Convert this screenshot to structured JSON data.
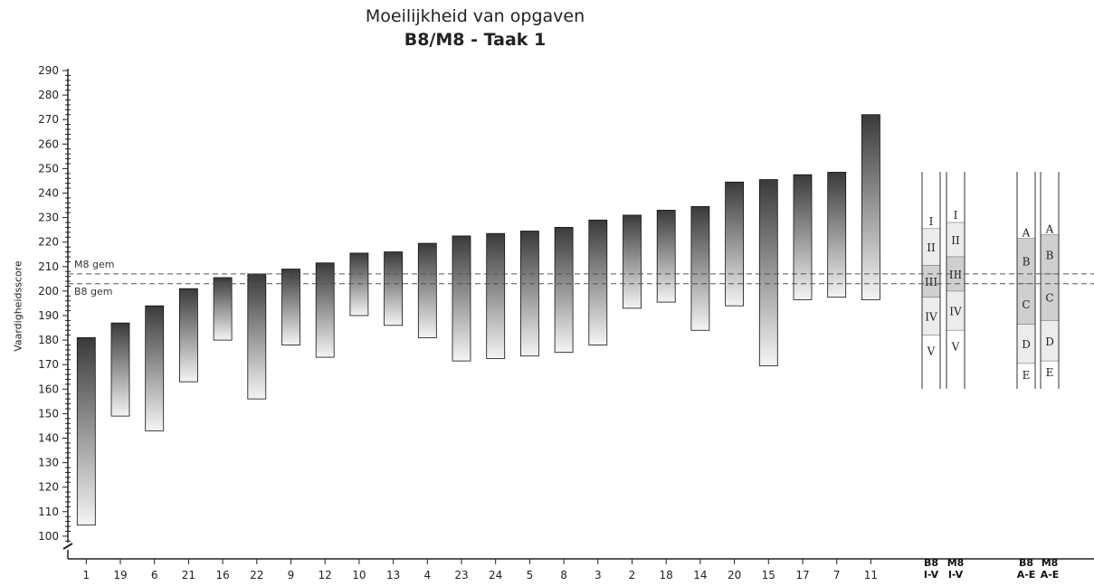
{
  "chart_data": {
    "type": "bar",
    "title": "Moeilijkheid van opgaven",
    "subtitle": "B8/M8 - Taak 1",
    "ylabel": "Vaardigheidsscore",
    "xlabel": "",
    "ylim": [
      96,
      290
    ],
    "yticks": [
      100,
      110,
      120,
      130,
      140,
      150,
      160,
      170,
      180,
      190,
      200,
      210,
      220,
      230,
      240,
      250,
      260,
      270,
      280,
      290
    ],
    "categories": [
      "1",
      "19",
      "6",
      "21",
      "16",
      "22",
      "9",
      "12",
      "10",
      "13",
      "4",
      "23",
      "24",
      "5",
      "8",
      "3",
      "2",
      "18",
      "14",
      "20",
      "15",
      "17",
      "7",
      "11"
    ],
    "bars_low": [
      104.5,
      149,
      143,
      163,
      180,
      156,
      178,
      173,
      190,
      186,
      181,
      171.5,
      172.5,
      173.5,
      175,
      178,
      193,
      195.5,
      184,
      194,
      169.5,
      196.5,
      197.5,
      196.5
    ],
    "bars_high": [
      181,
      187,
      194,
      201,
      205.5,
      207,
      209,
      211.5,
      215.5,
      216,
      219.5,
      222.5,
      223.5,
      224.5,
      226,
      229,
      231,
      233,
      234.5,
      244.5,
      245.5,
      247.5,
      248.5,
      272
    ],
    "reference_lines": [
      {
        "label": "M8 gem",
        "value": 207
      },
      {
        "label": "B8 gem",
        "value": 203
      }
    ],
    "scales": [
      {
        "label_top": "B8",
        "label_bottom": "I-V",
        "bands": [
          {
            "name": "I",
            "from": 225.5,
            "to": 238
          },
          {
            "name": "II",
            "from": 210.5,
            "to": 225.5
          },
          {
            "name": "III",
            "from": 197.5,
            "to": 210.5
          },
          {
            "name": "IV",
            "from": 182,
            "to": 197.5
          },
          {
            "name": "V",
            "from": 160,
            "to": 182
          }
        ]
      },
      {
        "label_top": "M8",
        "label_bottom": "I-V",
        "bands": [
          {
            "name": "I",
            "from": 228,
            "to": 238
          },
          {
            "name": "II",
            "from": 214,
            "to": 228
          },
          {
            "name": "III",
            "from": 200,
            "to": 214
          },
          {
            "name": "IV",
            "from": 184,
            "to": 200
          },
          {
            "name": "V",
            "from": 160,
            "to": 184
          }
        ]
      },
      {
        "label_top": "B8",
        "label_bottom": "A-E",
        "bands": [
          {
            "name": "A",
            "from": 221.5,
            "to": 238
          },
          {
            "name": "B",
            "from": 203,
            "to": 221.5
          },
          {
            "name": "C",
            "from": 186.5,
            "to": 203
          },
          {
            "name": "D",
            "from": 170.5,
            "to": 186.5
          },
          {
            "name": "E",
            "from": 160,
            "to": 170.5
          }
        ]
      },
      {
        "label_top": "M8",
        "label_bottom": "A-E",
        "bands": [
          {
            "name": "A",
            "from": 223,
            "to": 238
          },
          {
            "name": "B",
            "from": 207,
            "to": 223
          },
          {
            "name": "C",
            "from": 188,
            "to": 207
          },
          {
            "name": "D",
            "from": 171.5,
            "to": 188
          },
          {
            "name": "E",
            "from": 160,
            "to": 171.5
          }
        ]
      }
    ],
    "grid": false,
    "legend": "none"
  },
  "colors": {
    "bar_dark": "#3a3a3a",
    "bar_light": "#f2f2f2",
    "band_light": "#ececec",
    "band_mid": "#cfcfcf",
    "axis": "#222222",
    "refline": "#555555"
  }
}
